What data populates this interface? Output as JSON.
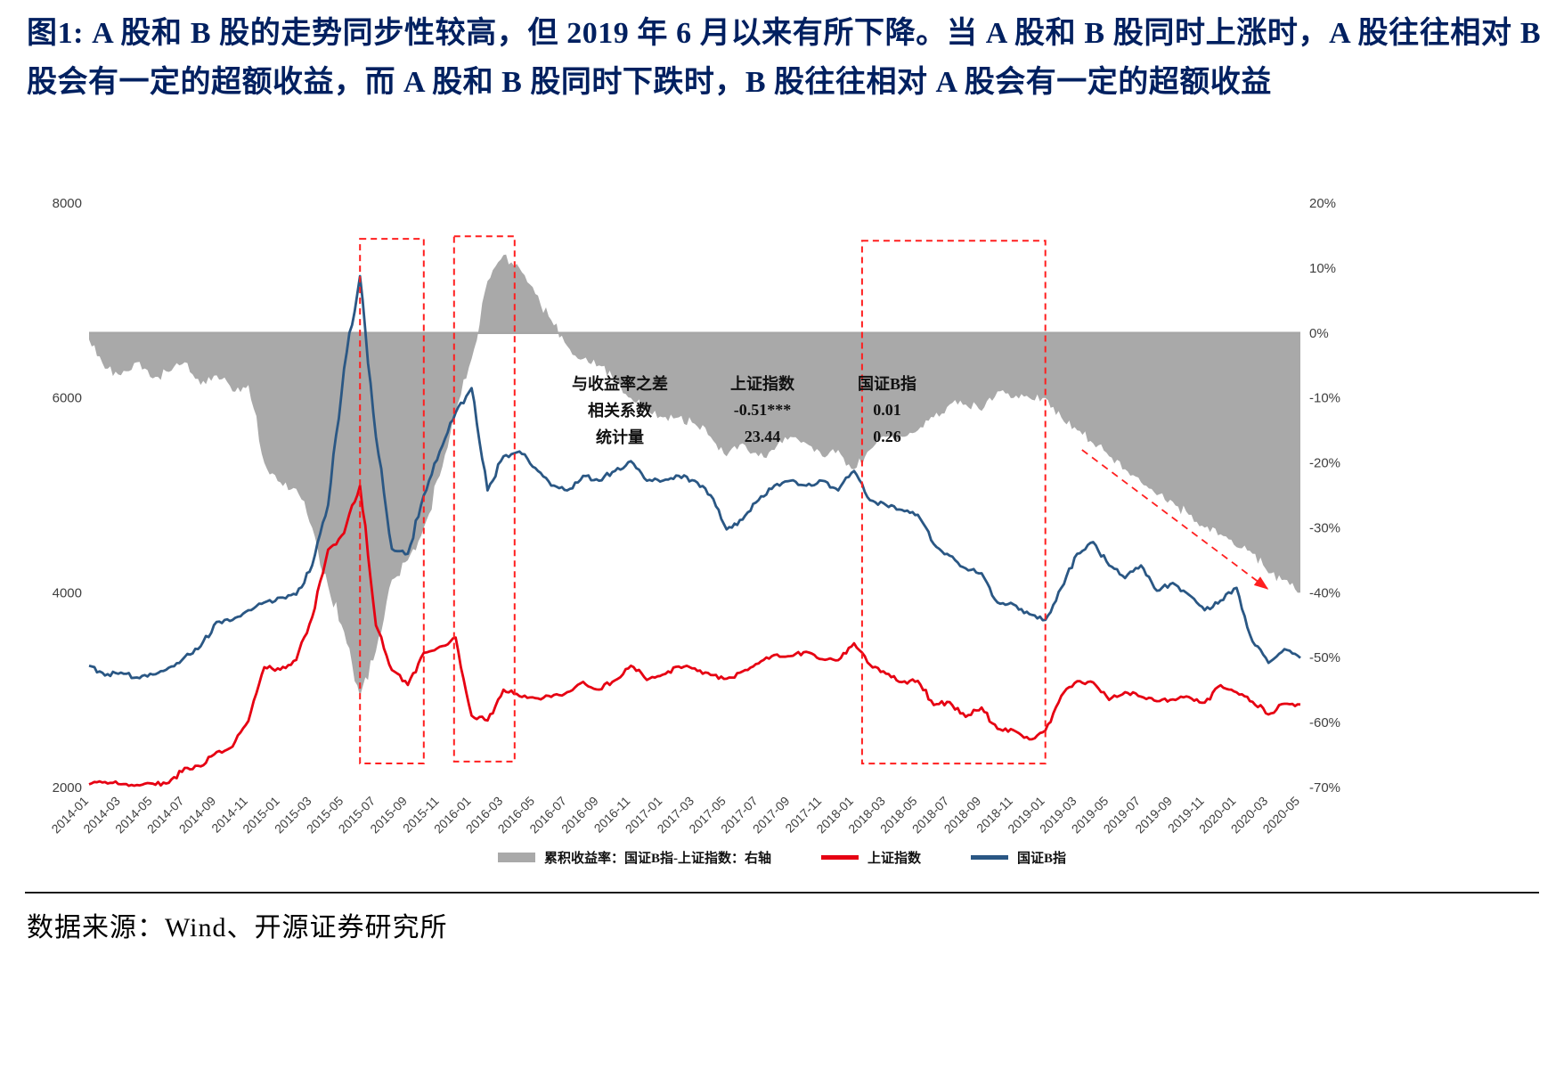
{
  "palette": {
    "title_blue": "#002060",
    "annotation_red": "#ff1f1f",
    "area_gray": "#a9a9a9",
    "zero_line_gray": "#a6a6a6",
    "sse_red": "#e60012",
    "b_index_blue": "#2a5784"
  },
  "title": "图1:  A 股和 B 股的走势同步性较高，但 2019 年 6 月以来有所下降。当 A 股和 B 股同时上涨时，A 股往往相对 B 股会有一定的超额收益，而 A 股和 B 股同时下跌时，B 股往往相对 A 股会有一定的超额收益",
  "stats_table": {
    "rows": [
      [
        "与收益率之差",
        "上证指数",
        "国证B指"
      ],
      [
        "相关系数",
        "-0.51***",
        "0.01"
      ],
      [
        "统计量",
        "23.44",
        "0.26"
      ]
    ]
  },
  "legend": {
    "items": [
      {
        "label": "累积收益率：国证B指-上证指数：右轴"
      },
      {
        "label": "上证指数"
      },
      {
        "label": "国证B指"
      }
    ]
  },
  "footer": {
    "source": "数据来源：Wind、开源证券研究所"
  },
  "chart_data": {
    "type": "line",
    "x_start": "2014-01",
    "x_freq": "monthly",
    "x_tick_labels": [
      "2014-01",
      "2014-03",
      "2014-05",
      "2014-07",
      "2014-09",
      "2014-11",
      "2015-01",
      "2015-03",
      "2015-05",
      "2015-07",
      "2015-09",
      "2015-11",
      "2016-01",
      "2016-03",
      "2016-05",
      "2016-07",
      "2016-09",
      "2016-11",
      "2017-01",
      "2017-03",
      "2017-05",
      "2017-07",
      "2017-09",
      "2017-11",
      "2018-01",
      "2018-03",
      "2018-05",
      "2018-07",
      "2018-09",
      "2018-11",
      "2019-01",
      "2019-03",
      "2019-05",
      "2019-07",
      "2019-09",
      "2019-11",
      "2020-01",
      "2020-03",
      "2020-05"
    ],
    "left_axis": {
      "min": 2000,
      "max": 8000,
      "ticks": [
        8000,
        6000,
        4000,
        2000
      ]
    },
    "right_axis": {
      "min": -70,
      "max": 20,
      "ticks": [
        "20%",
        "10%",
        "0%",
        "-10%",
        "-20%",
        "-30%",
        "-40%",
        "-50%",
        "-60%",
        "-70%"
      ]
    },
    "grid": "zero-line-only",
    "legend_position": "bottom",
    "series": [
      {
        "name": "累积收益率：国证B指-上证指数：右轴",
        "type": "area",
        "axis": "right",
        "color": "#a9a9a9",
        "values": [
          -1,
          -5.5,
          -6.5,
          -4.5,
          -7,
          -6,
          -4.5,
          -8,
          -6.5,
          -9,
          -8,
          -20,
          -23,
          -24,
          -30,
          -39,
          -46,
          -56,
          -49,
          -38,
          -35,
          -30,
          -22,
          -12,
          -4,
          8,
          12,
          10,
          6,
          2,
          -2,
          -4,
          -5,
          -7,
          -10,
          -12,
          -13,
          -13,
          -14,
          -16,
          -19,
          -17,
          -19,
          -18,
          -16,
          -17,
          -19,
          -18,
          -21,
          -18,
          -16,
          -16,
          -15,
          -13,
          -11,
          -11,
          -12,
          -9,
          -10,
          -10,
          -10,
          -13,
          -15,
          -17,
          -19,
          -21,
          -23,
          -25,
          -26,
          -28,
          -30,
          -31,
          -33,
          -34,
          -37,
          -38,
          -40
        ]
      },
      {
        "name": "上证指数",
        "type": "line",
        "axis": "left",
        "color": "#e60012",
        "values": [
          2033,
          2056,
          2033,
          2026,
          2039,
          2048,
          2201,
          2217,
          2364,
          2420,
          2683,
          3235,
          3210,
          3310,
          3748,
          4442,
          4612,
          5100,
          3664,
          3206,
          3053,
          3383,
          3445,
          3539,
          2738,
          2688,
          3004,
          2938,
          2917,
          2930,
          2979,
          3085,
          3005,
          3100,
          3250,
          3104,
          3159,
          3242,
          3223,
          3155,
          3117,
          3192,
          3273,
          3361,
          3349,
          3393,
          3317,
          3307,
          3481,
          3259,
          3169,
          3082,
          3095,
          2847,
          2876,
          2725,
          2821,
          2603,
          2588,
          2494,
          2585,
          2941,
          3091,
          3078,
          2899,
          2979,
          2933,
          2886,
          2905,
          2929,
          2872,
          3050,
          2977,
          2880,
          2750,
          2860,
          2852
        ]
      },
      {
        "name": "国证B指",
        "type": "line",
        "axis": "left",
        "color": "#2a5784",
        "values": [
          3250,
          3150,
          3180,
          3130,
          3160,
          3230,
          3340,
          3450,
          3700,
          3720,
          3820,
          3900,
          3950,
          3980,
          4280,
          4900,
          6300,
          7250,
          5600,
          4450,
          4400,
          5000,
          5450,
          5850,
          6100,
          5050,
          5400,
          5450,
          5280,
          5100,
          5050,
          5200,
          5150,
          5250,
          5350,
          5150,
          5150,
          5200,
          5150,
          5000,
          4650,
          4750,
          4950,
          5100,
          5150,
          5100,
          5150,
          5050,
          5250,
          4950,
          4900,
          4850,
          4800,
          4500,
          4380,
          4250,
          4200,
          3900,
          3880,
          3780,
          3720,
          4050,
          4400,
          4520,
          4280,
          4150,
          4280,
          4020,
          4100,
          3980,
          3820,
          3920,
          4050,
          3500,
          3280,
          3420,
          3330
        ]
      }
    ],
    "annotations": {
      "dashed_boxes": [
        {
          "x0_month": 17.0,
          "x1_month": 21.0,
          "pct_top": 14.5,
          "pct_bottom": -66.3
        },
        {
          "x0_month": 22.9,
          "x1_month": 26.7,
          "pct_top": 14.9,
          "pct_bottom": -66.0
        },
        {
          "x0_month": 48.5,
          "x1_month": 60.0,
          "pct_top": 14.2,
          "pct_bottom": -66.3
        }
      ],
      "arrow": {
        "x0_month": 62.3,
        "pct0": -18,
        "x1_month": 74.0,
        "pct1": -39.5
      }
    }
  }
}
